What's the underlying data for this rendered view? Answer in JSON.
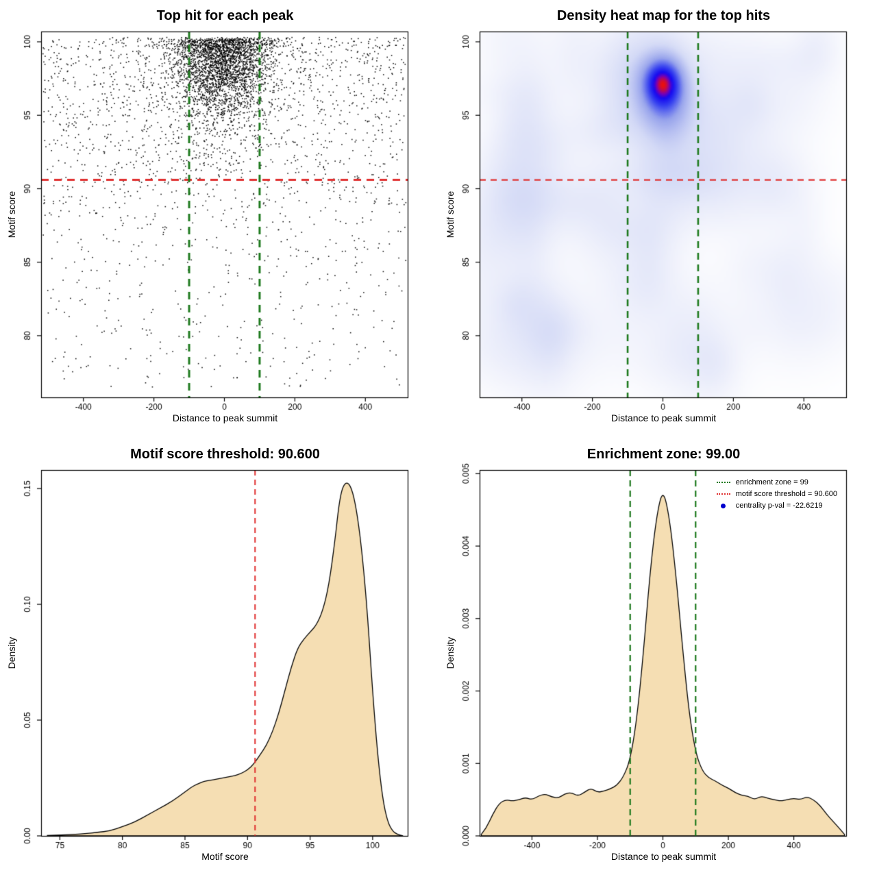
{
  "figure": {
    "background": "#ffffff",
    "text_color": "#000000"
  },
  "colors": {
    "threshold_red": "#e03030",
    "zone_green": "#1e7a1e",
    "density_fill": "#f5deb3",
    "density_line": "#000000",
    "scatter_point": "#000000",
    "heat_core_red": "#e81010",
    "heat_blue": "#1407f0",
    "legend_dot_blue": "#0000cd"
  },
  "chart_data": [
    {
      "type": "scatter",
      "title": "Top hit for each peak",
      "xlabel": "Distance to peak summit",
      "ylabel": "Motif score",
      "xlim": [
        -520,
        520
      ],
      "ylim": [
        75.8,
        100.7
      ],
      "xticks": [
        -400,
        -200,
        0,
        200,
        400
      ],
      "xtick_labels": [
        "-400",
        "-200",
        "0",
        "200",
        "400"
      ],
      "yticks": [
        80,
        85,
        90,
        95,
        100
      ],
      "ytick_labels": [
        "80",
        "85",
        "90",
        "95",
        "100"
      ],
      "grid": false,
      "legend_position": "none",
      "point_color": "#000000",
      "point_size": 1.6,
      "seed": 20,
      "scatter_components": [
        {
          "n": 2100,
          "x": [
            "normal",
            -8,
            70
          ],
          "y": [
            "fromtop",
            100.2,
            2.5
          ],
          "ymin": 89
        },
        {
          "n": 520,
          "x": [
            "normal",
            -5,
            80
          ],
          "y": [
            "fromtop",
            100.0,
            4.5
          ],
          "ymin": 83
        },
        {
          "n": 1500,
          "x": [
            "uniform",
            -515,
            515
          ],
          "y": [
            "fromtop",
            100.3,
            6.0
          ],
          "ymin": 76.3
        },
        {
          "n": 430,
          "x": [
            "uniform",
            -515,
            515
          ],
          "y": [
            "uniform",
            76.5,
            92
          ]
        },
        {
          "n": 250,
          "x": [
            "normal",
            -5,
            115
          ],
          "y": [
            "uniform",
            99.55,
            100.3
          ]
        }
      ],
      "hlines": [
        {
          "y": 90.6,
          "color": "#e03030",
          "width": 3,
          "dash": [
            11,
            8
          ]
        }
      ],
      "vlines": [
        {
          "x": -100,
          "color": "#1e7a1e",
          "width": 3,
          "dash": [
            11,
            8
          ]
        },
        {
          "x": 100,
          "color": "#1e7a1e",
          "width": 3,
          "dash": [
            11,
            8
          ]
        }
      ]
    },
    {
      "type": "heatmap",
      "title": "Density heat map for the top hits",
      "xlabel": "Distance to peak summit",
      "ylabel": "Motif score",
      "xlim": [
        -520,
        520
      ],
      "ylim": [
        75.8,
        100.7
      ],
      "xticks": [
        -400,
        -200,
        0,
        200,
        400
      ],
      "xtick_labels": [
        "-400",
        "-200",
        "0",
        "200",
        "400"
      ],
      "yticks": [
        80,
        85,
        90,
        95,
        100
      ],
      "ytick_labels": [
        "80",
        "85",
        "90",
        "95",
        "100"
      ],
      "grid": false,
      "legend_position": "none",
      "gamma": 0.8,
      "blobs": [
        {
          "x": 0,
          "y": 97.3,
          "sx": 38,
          "sy": 1.15,
          "w": 1.0
        },
        {
          "x": 8,
          "y": 96.0,
          "sx": 52,
          "sy": 1.7,
          "w": 0.5
        },
        {
          "x": 0,
          "y": 93.8,
          "sx": 75,
          "sy": 2.4,
          "w": 0.22
        },
        {
          "x": 30,
          "y": 90.8,
          "sx": 130,
          "sy": 1.1,
          "w": 0.12
        },
        {
          "x": -40,
          "y": 98.5,
          "sx": 160,
          "sy": 2.5,
          "w": 0.15
        }
      ],
      "random_blobs": {
        "n": 80,
        "seed": 11,
        "x": [
          -520,
          520
        ],
        "y": [
          78,
          100
        ],
        "sx": [
          35,
          95
        ],
        "sy": [
          1.0,
          3.0
        ],
        "w": [
          0.03,
          0.09
        ]
      },
      "color_stops": [
        [
          0,
          "#ffffff"
        ],
        [
          0.12,
          "#eef0fb"
        ],
        [
          0.3,
          "#d4daf6"
        ],
        [
          0.55,
          "#97a3ec"
        ],
        [
          0.75,
          "#3743ef"
        ],
        [
          0.88,
          "#1407f0"
        ],
        [
          0.94,
          "#7a00b4"
        ],
        [
          1,
          "#e81010"
        ]
      ],
      "hlines": [
        {
          "y": 90.6,
          "color": "#e03030",
          "width": 2.2,
          "dash": [
            9,
            7
          ]
        }
      ],
      "vlines": [
        {
          "x": -100,
          "color": "#1e7a1e",
          "width": 2.6,
          "dash": [
            10,
            7
          ]
        },
        {
          "x": 100,
          "color": "#1e7a1e",
          "width": 2.6,
          "dash": [
            10,
            7
          ]
        }
      ]
    },
    {
      "type": "density",
      "title": "Motif score threshold: 90.600",
      "xlabel": "Motif score",
      "ylabel": "Density",
      "xlim": [
        73.5,
        102.8
      ],
      "ylim": [
        0,
        0.158
      ],
      "xticks": [
        75,
        80,
        85,
        90,
        95,
        100
      ],
      "xtick_labels": [
        "75",
        "80",
        "85",
        "90",
        "95",
        "100"
      ],
      "yticks": [
        0,
        0.05,
        0.1,
        0.15
      ],
      "ytick_labels": [
        "0.00",
        "0.05",
        "0.10",
        "0.15"
      ],
      "grid": false,
      "legend_position": "none",
      "fill": "#f5deb3",
      "line": "#000000",
      "curve": {
        "x": [
          74,
          75,
          76,
          77,
          78,
          79,
          80,
          81,
          82,
          83,
          84,
          85,
          85.5,
          86,
          86.5,
          87,
          87.5,
          88,
          88.5,
          89,
          89.5,
          90,
          90.5,
          91,
          91.5,
          92,
          92.5,
          93,
          93.5,
          94,
          94.5,
          95,
          95.5,
          96,
          96.5,
          97,
          97.3,
          97.6,
          98,
          98.4,
          98.8,
          99.2,
          99.6,
          100,
          100.4,
          100.8,
          101.2,
          101.6,
          102,
          102.4
        ],
        "y": [
          0.0002,
          0.0004,
          0.0006,
          0.001,
          0.0015,
          0.0022,
          0.004,
          0.006,
          0.009,
          0.012,
          0.015,
          0.019,
          0.021,
          0.0225,
          0.0235,
          0.024,
          0.0245,
          0.025,
          0.0255,
          0.026,
          0.027,
          0.0285,
          0.031,
          0.035,
          0.039,
          0.045,
          0.053,
          0.063,
          0.073,
          0.081,
          0.085,
          0.088,
          0.091,
          0.097,
          0.108,
          0.128,
          0.143,
          0.151,
          0.153,
          0.149,
          0.138,
          0.12,
          0.095,
          0.062,
          0.035,
          0.016,
          0.006,
          0.002,
          0.0006,
          0.0001
        ]
      },
      "hlines": [],
      "vlines": [
        {
          "x": 90.6,
          "color": "#e03030",
          "width": 2,
          "dash": [
            8,
            6
          ]
        }
      ]
    },
    {
      "type": "density",
      "title": "Enrichment zone: 99.00",
      "xlabel": "Distance to peak summit",
      "ylabel": "Density",
      "xlim": [
        -560,
        560
      ],
      "ylim": [
        0,
        0.00505
      ],
      "xticks": [
        -400,
        -200,
        0,
        200,
        400
      ],
      "xtick_labels": [
        "-400",
        "-200",
        "0",
        "200",
        "400"
      ],
      "yticks": [
        0,
        0.001,
        0.002,
        0.003,
        0.004,
        0.005
      ],
      "ytick_labels": [
        "0.000",
        "0.001",
        "0.002",
        "0.003",
        "0.004",
        "0.005"
      ],
      "grid": false,
      "legend_position": "top-right",
      "fill": "#f5deb3",
      "line": "#000000",
      "curve": {
        "x": [
          -555,
          -540,
          -520,
          -500,
          -480,
          -460,
          -440,
          -420,
          -400,
          -380,
          -360,
          -340,
          -320,
          -300,
          -280,
          -260,
          -240,
          -220,
          -200,
          -180,
          -160,
          -140,
          -120,
          -100,
          -80,
          -60,
          -40,
          -20,
          0,
          20,
          40,
          60,
          80,
          100,
          120,
          140,
          160,
          180,
          200,
          220,
          240,
          260,
          280,
          300,
          320,
          340,
          360,
          380,
          400,
          420,
          440,
          460,
          480,
          500,
          520,
          540,
          555
        ],
        "y": [
          2e-05,
          0.0001,
          0.0003,
          0.00045,
          0.0005,
          0.00048,
          0.0005,
          0.00053,
          0.0005,
          0.00055,
          0.00058,
          0.00054,
          0.00052,
          0.00058,
          0.0006,
          0.00055,
          0.0006,
          0.00066,
          0.0006,
          0.00062,
          0.00065,
          0.0007,
          0.00082,
          0.00105,
          0.0016,
          0.0025,
          0.0036,
          0.0044,
          0.0048,
          0.0044,
          0.0036,
          0.0026,
          0.0017,
          0.00115,
          0.0009,
          0.0008,
          0.00076,
          0.0007,
          0.00066,
          0.0006,
          0.00056,
          0.00055,
          0.0005,
          0.00055,
          0.00052,
          0.0005,
          0.00048,
          0.0005,
          0.00052,
          0.0005,
          0.00054,
          0.0005,
          0.00042,
          0.0003,
          0.0002,
          0.0001,
          2e-05
        ]
      },
      "hlines": [],
      "vlines": [
        {
          "x": -100,
          "color": "#1e7a1e",
          "width": 2.2,
          "dash": [
            9,
            6
          ]
        },
        {
          "x": 100,
          "color": "#1e7a1e",
          "width": 2.2,
          "dash": [
            9,
            6
          ]
        }
      ],
      "legend": {
        "entries": [
          {
            "symbol": "dotted-line",
            "color": "#1e7a1e",
            "label": "enrichment zone = 99"
          },
          {
            "symbol": "dotted-line",
            "color": "#e03030",
            "label": "motif score threshold = 90.600"
          },
          {
            "symbol": "dot",
            "color": "#0000cd",
            "label": "centrality p-val = -22.6219"
          }
        ]
      }
    }
  ]
}
